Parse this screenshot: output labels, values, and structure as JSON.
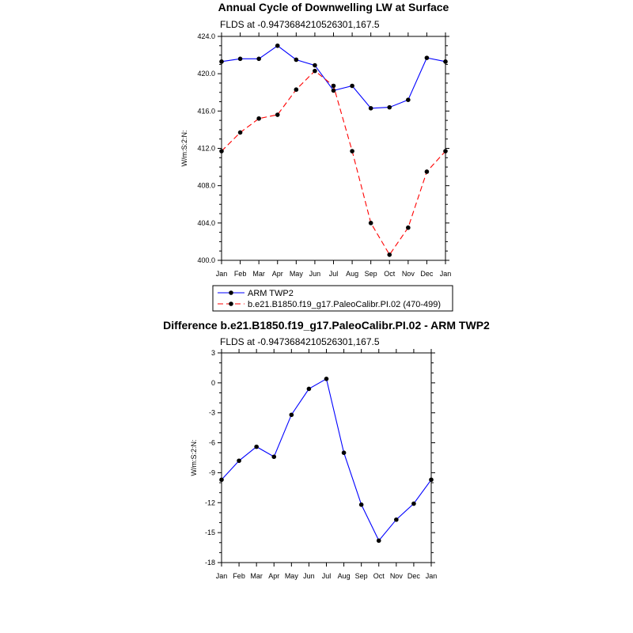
{
  "chart_data": [
    {
      "type": "line",
      "title": "Annual Cycle of Downwelling LW at Surface",
      "subtitle": "FLDS at -0.9473684210526301,167.5",
      "xlabel": "",
      "ylabel": "W/m:S:2:N:",
      "categories": [
        "Jan",
        "Feb",
        "Mar",
        "Apr",
        "May",
        "Jun",
        "Jul",
        "Aug",
        "Sep",
        "Oct",
        "Nov",
        "Dec",
        "Jan"
      ],
      "ylim": [
        400,
        424
      ],
      "yticks": [
        400,
        404,
        408,
        412,
        416,
        420,
        424
      ],
      "ytick_labels": [
        "400.0",
        "404.0",
        "408.0",
        "412.0",
        "416.0",
        "420.0",
        "424.0"
      ],
      "series": [
        {
          "name": "ARM TWP2",
          "color": "#0000ff",
          "dash": "solid",
          "values": [
            421.3,
            421.6,
            421.6,
            423.0,
            421.5,
            420.9,
            418.2,
            418.7,
            416.3,
            416.4,
            417.2,
            421.7,
            421.3
          ]
        },
        {
          "name": "b.e21.B1850.f19_g17.PaleoCalibr.PI.02 (470-499)",
          "color": "#ff0000",
          "dash": "dashed",
          "values": [
            411.7,
            413.7,
            415.2,
            415.6,
            418.3,
            420.3,
            418.7,
            411.7,
            404.0,
            400.6,
            403.5,
            409.5,
            411.7
          ]
        }
      ],
      "legend": "bottom"
    },
    {
      "type": "line",
      "title": "Difference b.e21.B1850.f19_g17.PaleoCalibr.PI.02 - ARM TWP2",
      "subtitle": "FLDS at -0.9473684210526301,167.5",
      "xlabel": "",
      "ylabel": "W/m:S:2:N:",
      "categories": [
        "Jan",
        "Feb",
        "Mar",
        "Apr",
        "May",
        "Jun",
        "Jul",
        "Aug",
        "Sep",
        "Oct",
        "Nov",
        "Dec",
        "Jan"
      ],
      "ylim": [
        -18,
        3
      ],
      "yticks": [
        -18,
        -15,
        -12,
        -9,
        -6,
        -3,
        0,
        3
      ],
      "ytick_labels": [
        "-18",
        "-15",
        "-12",
        "-9",
        "-6",
        "-3",
        "0",
        "3"
      ],
      "series": [
        {
          "color": "#0000ff",
          "dash": "solid",
          "values": [
            -9.7,
            -7.8,
            -6.4,
            -7.4,
            -3.2,
            -0.6,
            0.4,
            -7.0,
            -12.2,
            -15.8,
            -13.7,
            -12.1,
            -9.7
          ]
        }
      ]
    }
  ]
}
